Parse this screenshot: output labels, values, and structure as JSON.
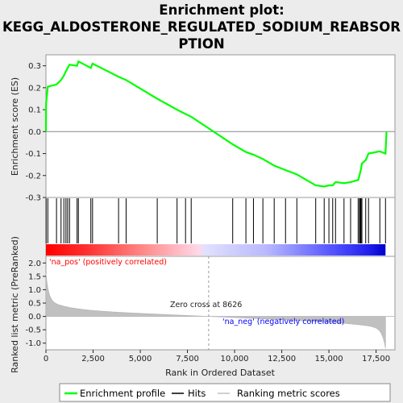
{
  "chart_data": {
    "type": "line",
    "title_lines": [
      "Enrichment plot:",
      "KEGG_ALDOSTERONE_REGULATED_SODIUM_REABSOR",
      "PTION"
    ],
    "xlabel": "Rank in Ordered Dataset",
    "ylabel_top": "Enrichment score (ES)",
    "ylabel_bottom": "Ranked list metric (PreRanked)",
    "xlim": [
      0,
      18500
    ],
    "x_ticks": [
      0,
      2500,
      5000,
      7500,
      10000,
      12500,
      15000,
      17500
    ],
    "es_ylim": [
      -0.3,
      0.35
    ],
    "es_ticks": [
      -0.3,
      -0.2,
      -0.1,
      0.0,
      0.1,
      0.2,
      0.3
    ],
    "metric_ylim": [
      -1.25,
      2.25
    ],
    "metric_ticks": [
      -1.0,
      -0.5,
      0.0,
      0.5,
      1.0,
      1.5,
      2.0
    ],
    "zero_cross": 8626,
    "zero_cross_label": "Zero cross at 8626",
    "pos_label": "'na_pos' (positively correlated)",
    "neg_label": "'na_neg' (negatively correlated)",
    "colors": {
      "es": "#00ff00",
      "hits": "#000000",
      "metric": "#c0c0c0",
      "pos": "#ff0000",
      "neg": "#0000ff"
    },
    "hits": [
      10,
      100,
      560,
      800,
      950,
      1060,
      1150,
      1250,
      1650,
      1720,
      2380,
      2470,
      3850,
      4250,
      5900,
      6950,
      7400,
      7700,
      9900,
      10600,
      11000,
      11500,
      12100,
      12700,
      13300,
      14300,
      14750,
      15000,
      15200,
      15350,
      15800,
      16150,
      16550,
      16620,
      16660,
      16700,
      16750,
      16950,
      17100,
      17700,
      18000
    ],
    "es_curve": {
      "x": [
        0,
        10,
        100,
        560,
        800,
        950,
        1060,
        1150,
        1250,
        1650,
        1720,
        2380,
        2470,
        3850,
        4250,
        5900,
        6950,
        7400,
        7700,
        9900,
        10600,
        11000,
        11500,
        12100,
        12700,
        13300,
        14300,
        14750,
        15000,
        15200,
        15350,
        15800,
        16150,
        16550,
        16620,
        16660,
        16700,
        16750,
        16950,
        17100,
        17700,
        18000,
        18050
      ],
      "y": [
        0.0,
        0.13,
        0.205,
        0.215,
        0.235,
        0.255,
        0.275,
        0.29,
        0.305,
        0.3,
        0.32,
        0.29,
        0.31,
        0.25,
        0.235,
        0.15,
        0.1,
        0.08,
        0.068,
        -0.058,
        -0.093,
        -0.105,
        -0.125,
        -0.155,
        -0.175,
        -0.195,
        -0.245,
        -0.25,
        -0.245,
        -0.245,
        -0.23,
        -0.235,
        -0.23,
        -0.22,
        -0.2,
        -0.185,
        -0.17,
        -0.145,
        -0.13,
        -0.1,
        -0.09,
        -0.1,
        0.0
      ]
    },
    "legend": [
      {
        "name": "Enrichment profile"
      },
      {
        "name": "Hits"
      },
      {
        "name": "Ranking metric scores"
      }
    ]
  }
}
